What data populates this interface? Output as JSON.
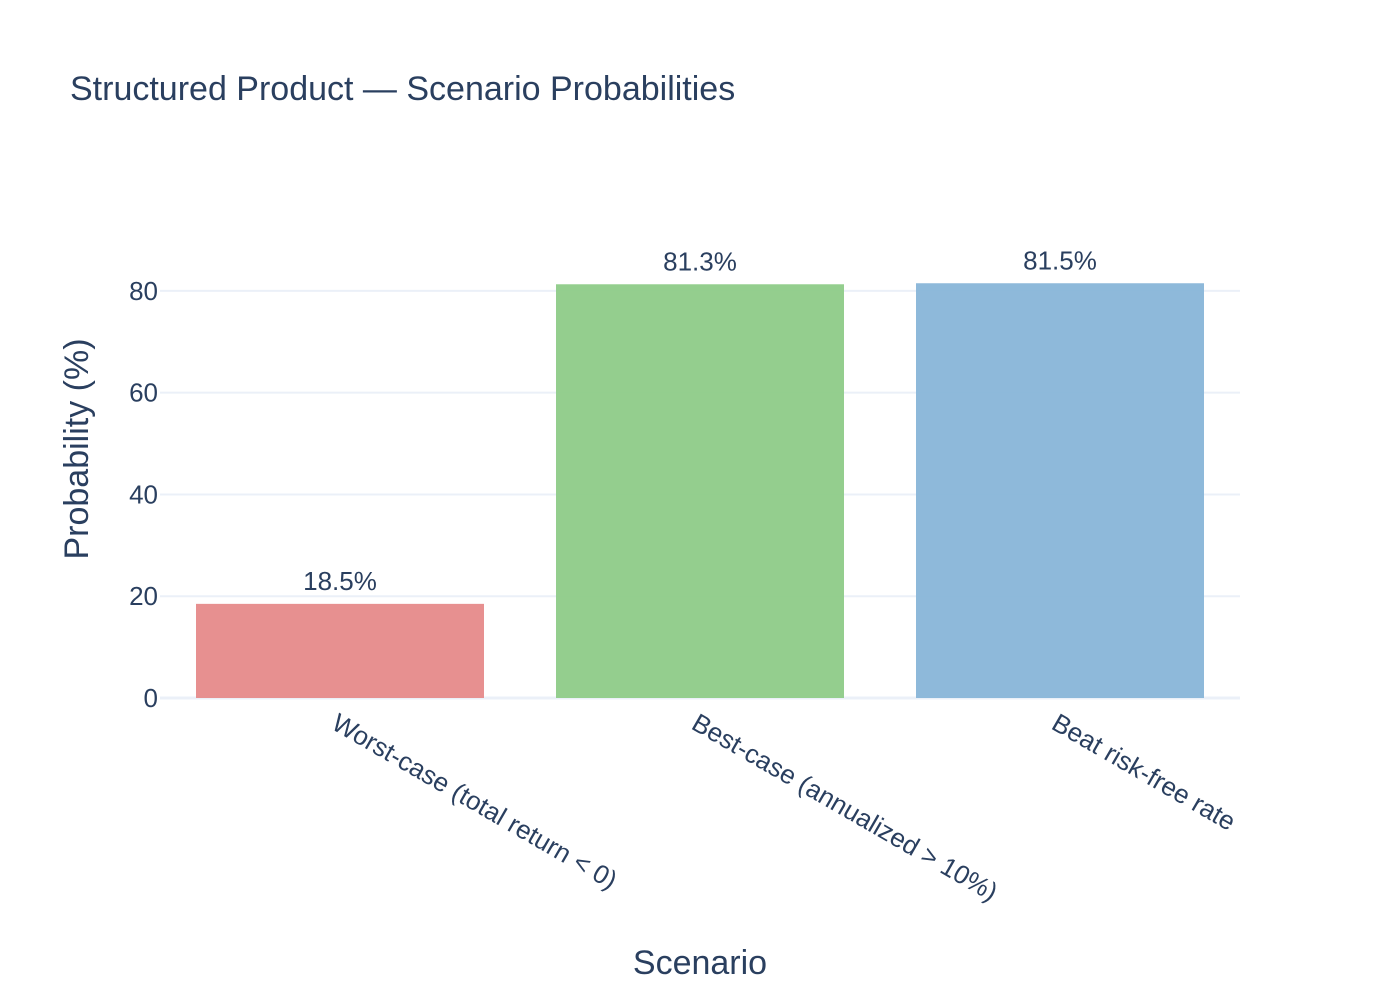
{
  "chart_data": {
    "type": "bar",
    "title": "Structured Product — Scenario Probabilities",
    "xlabel": "Scenario",
    "ylabel": "Probability (%)",
    "ylim": [
      0,
      90
    ],
    "yticks": [
      0,
      20,
      40,
      60,
      80
    ],
    "grid": true,
    "legend": "none",
    "categories": [
      "Worst-case (total return < 0)",
      "Best-case (annualized > 10%)",
      "Beat risk-free rate"
    ],
    "values": [
      18.5,
      81.3,
      81.5
    ],
    "data_labels": [
      "18.5%",
      "81.3%",
      "81.5%"
    ],
    "colors": [
      "#e68a8a",
      "#8ecb88",
      "#88b5d8"
    ]
  }
}
